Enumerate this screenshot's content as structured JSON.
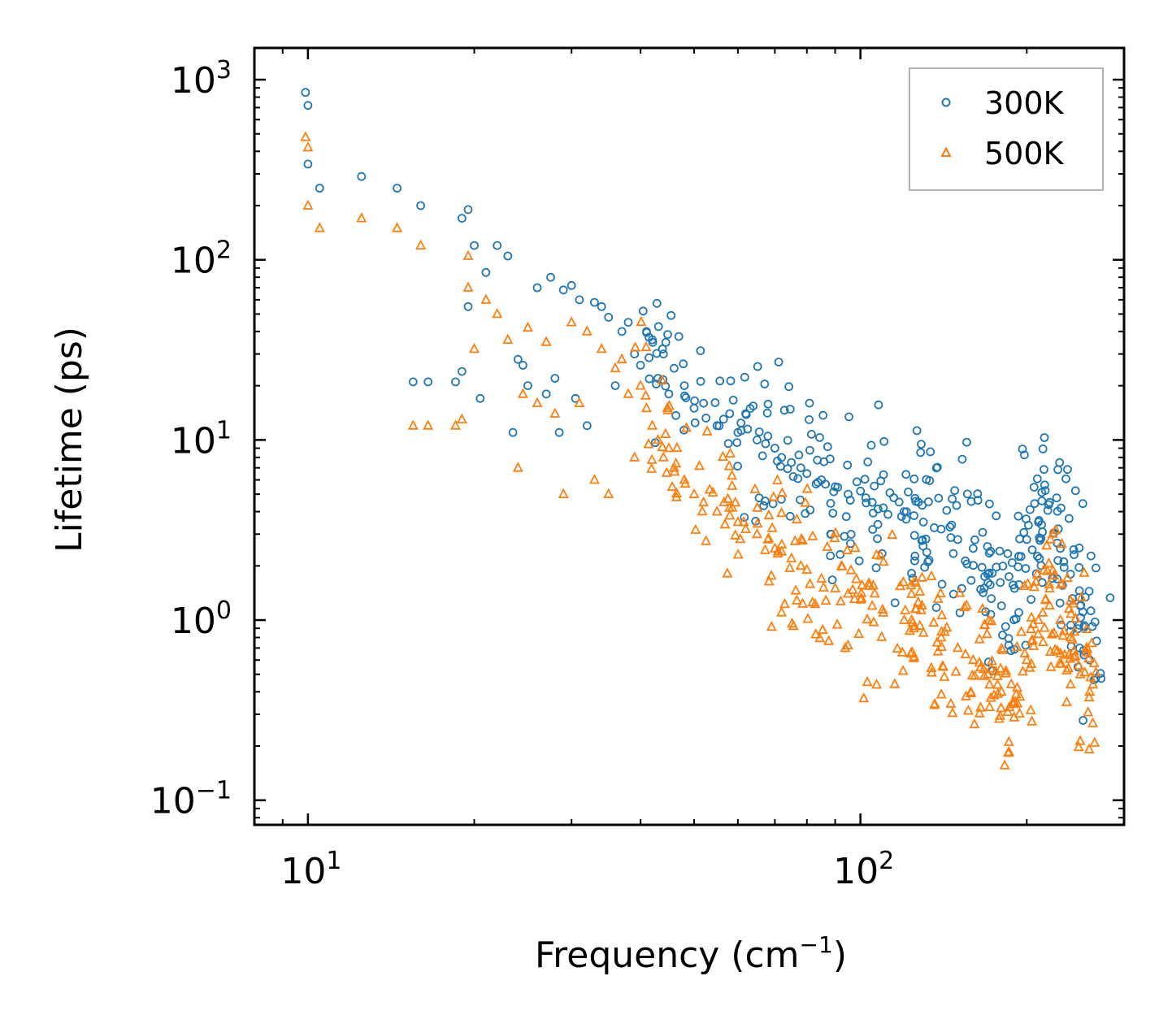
{
  "chart_data": {
    "type": "scatter",
    "title": "",
    "xlabel": "Frequency (cm",
    "xlabel_sup": "−1",
    "xlabel_suffix": ")",
    "ylabel": "Lifetime (ps)",
    "xscale": "log",
    "yscale": "log",
    "xlim": [
      8,
      300
    ],
    "ylim": [
      0.073,
      1500
    ],
    "x_ticks": [
      {
        "value": 10,
        "base": "10",
        "exp": "1"
      },
      {
        "value": 100,
        "base": "10",
        "exp": "2"
      }
    ],
    "y_ticks": [
      {
        "value": 0.1,
        "base": "10",
        "exp": "−1"
      },
      {
        "value": 1,
        "base": "10",
        "exp": "0"
      },
      {
        "value": 10,
        "base": "10",
        "exp": "1"
      },
      {
        "value": 100,
        "base": "10",
        "exp": "2"
      },
      {
        "value": 1000,
        "base": "10",
        "exp": "3"
      }
    ],
    "legend_position": "top-right",
    "series": [
      {
        "name": "300K",
        "marker": "circle",
        "color": "#1f77b4",
        "x": [
          9.9,
          10.0,
          10.0,
          10.5,
          12.5,
          14.5,
          16.0,
          15.5,
          16.5,
          18.5,
          19.0,
          19.0,
          19.5,
          20.0,
          21.0,
          22.0,
          23.0,
          20.5,
          19.5,
          23.5,
          24.0,
          24.5,
          25.0,
          26.0,
          27.0,
          27.5,
          28.0,
          28.5,
          29.0,
          30.0,
          30.5,
          31.0,
          32.0,
          33.0,
          34.0,
          35.0,
          36.0,
          37.0,
          38.0,
          39.0,
          40.0,
          41.0,
          42.0,
          43.0,
          44.0,
          45.0,
          46.0,
          48.0,
          50.0,
          52.0,
          55.0,
          58.0,
          60.0,
          62.0,
          65.0,
          68.0,
          70.0,
          72.0,
          75.0,
          78.0,
          80.0,
          85.0,
          90.0,
          95.0,
          100.0,
          105.0,
          110.0,
          120.0,
          125.0,
          130.0,
          140.0,
          150.0,
          160.0,
          170.0,
          180.0,
          190.0,
          200.0,
          210.0,
          220.0,
          230.0,
          240.0,
          250.0,
          260.0
        ],
        "y": [
          850,
          720,
          340,
          250,
          290,
          250,
          200,
          21,
          21,
          21,
          24,
          170,
          190,
          120,
          85,
          120,
          105,
          17,
          55,
          11,
          28,
          26,
          20,
          70,
          18,
          80,
          22,
          11,
          68,
          72,
          17,
          60,
          12,
          58,
          55,
          48,
          20,
          40,
          45,
          30,
          26,
          40,
          36,
          22,
          30,
          18,
          25,
          20,
          15,
          16,
          12,
          14,
          11,
          14,
          10,
          10.5,
          9,
          8,
          7.5,
          7,
          6.5,
          6,
          5.5,
          5,
          5.2,
          4.5,
          4.2,
          4.0,
          3.8,
          3.5,
          3.2,
          2.8,
          2.5,
          1.8,
          1.2,
          1.5,
          2.8,
          3.5,
          4.5,
          2.5,
          1.8,
          1.2,
          0.6
        ]
      },
      {
        "name": "500K",
        "marker": "triangle",
        "color": "#ff7f0e",
        "x": [
          9.9,
          10.0,
          10.0,
          10.5,
          12.5,
          14.5,
          16.0,
          15.5,
          16.5,
          18.5,
          19.0,
          19.5,
          19.5,
          20.0,
          21.0,
          22.0,
          23.0,
          24.0,
          24.5,
          25.0,
          26.0,
          27.0,
          28.0,
          29.0,
          30.0,
          31.0,
          32.0,
          33.0,
          34.0,
          35.0,
          36.0,
          37.0,
          38.0,
          39.0,
          40.0,
          41.0,
          42.0,
          43.0,
          44.0,
          45.0,
          46.0,
          48.0,
          50.0,
          52.0,
          55.0,
          58.0,
          60.0,
          62.0,
          65.0,
          68.0,
          70.0,
          72.0,
          75.0,
          78.0,
          80.0,
          85.0,
          90.0,
          95.0,
          100.0,
          105.0,
          110.0,
          120.0,
          125.0,
          130.0,
          140.0,
          150.0,
          160.0,
          170.0,
          180.0,
          190.0,
          200.0,
          210.0,
          220.0,
          230.0,
          240.0,
          250.0,
          260.0
        ],
        "y": [
          480,
          420,
          200,
          150,
          170,
          150,
          120,
          12,
          12,
          12,
          13,
          105,
          70,
          32,
          60,
          50,
          36,
          7,
          18,
          42,
          16,
          35,
          14,
          5,
          45,
          16,
          40,
          6,
          32,
          5,
          25,
          28,
          18,
          8,
          20,
          15,
          12,
          10,
          8,
          9,
          7,
          6,
          5,
          4.5,
          4,
          3.8,
          3.5,
          3.2,
          3.0,
          2.8,
          2.5,
          2.4,
          2.2,
          2.0,
          1.9,
          1.7,
          1.5,
          1.4,
          1.3,
          1.2,
          1.1,
          1.0,
          0.9,
          0.85,
          0.8,
          0.7,
          0.6,
          0.5,
          0.4,
          0.35,
          0.6,
          1.0,
          1.5,
          1.0,
          0.8,
          0.5,
          0.4
        ]
      }
    ]
  }
}
